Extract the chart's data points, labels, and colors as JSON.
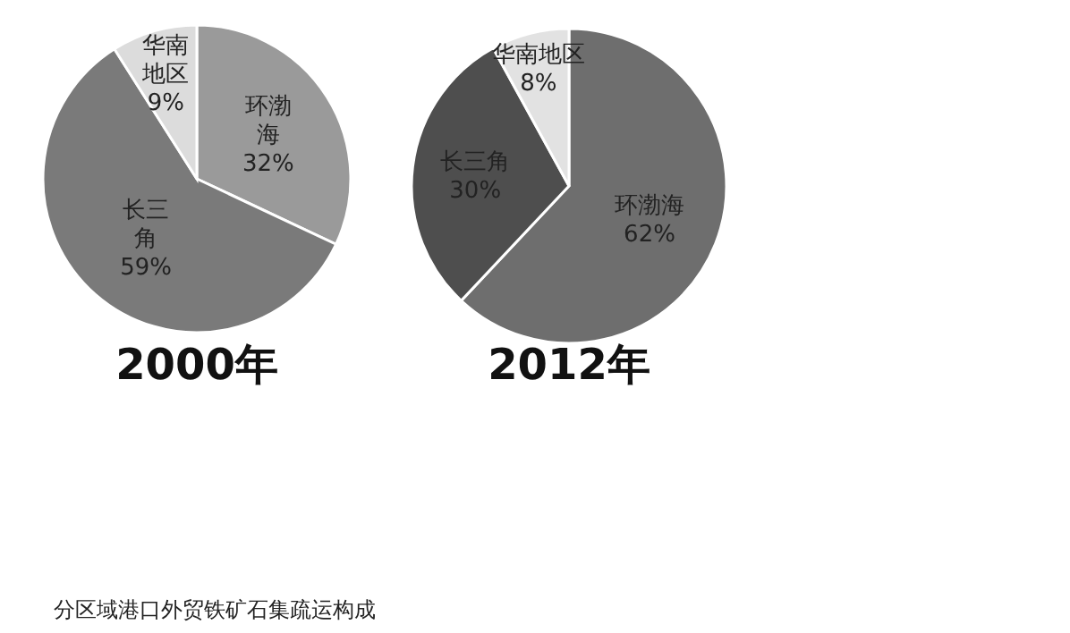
{
  "chart_data": [
    {
      "type": "pie",
      "title": "2000年",
      "categories": [
        "环渤海",
        "长三角",
        "华南地区"
      ],
      "values": [
        32,
        59,
        9
      ],
      "value_labels": [
        "32%",
        "59%",
        "9%"
      ],
      "colors": [
        "#9a9a9a",
        "#7a7a7a",
        "#dcdcdc"
      ],
      "annotations": [
        "分区域港口外贸铁矿石集疏运构成"
      ]
    },
    {
      "type": "pie",
      "title": "2012年",
      "categories": [
        "环渤海",
        "长三角",
        "华南地区"
      ],
      "values": [
        62,
        30,
        8
      ],
      "value_labels": [
        "62%",
        "30%",
        "8%"
      ],
      "colors": [
        "#6e6e6e",
        "#4e4e4e",
        "#e2e2e2"
      ]
    }
  ]
}
